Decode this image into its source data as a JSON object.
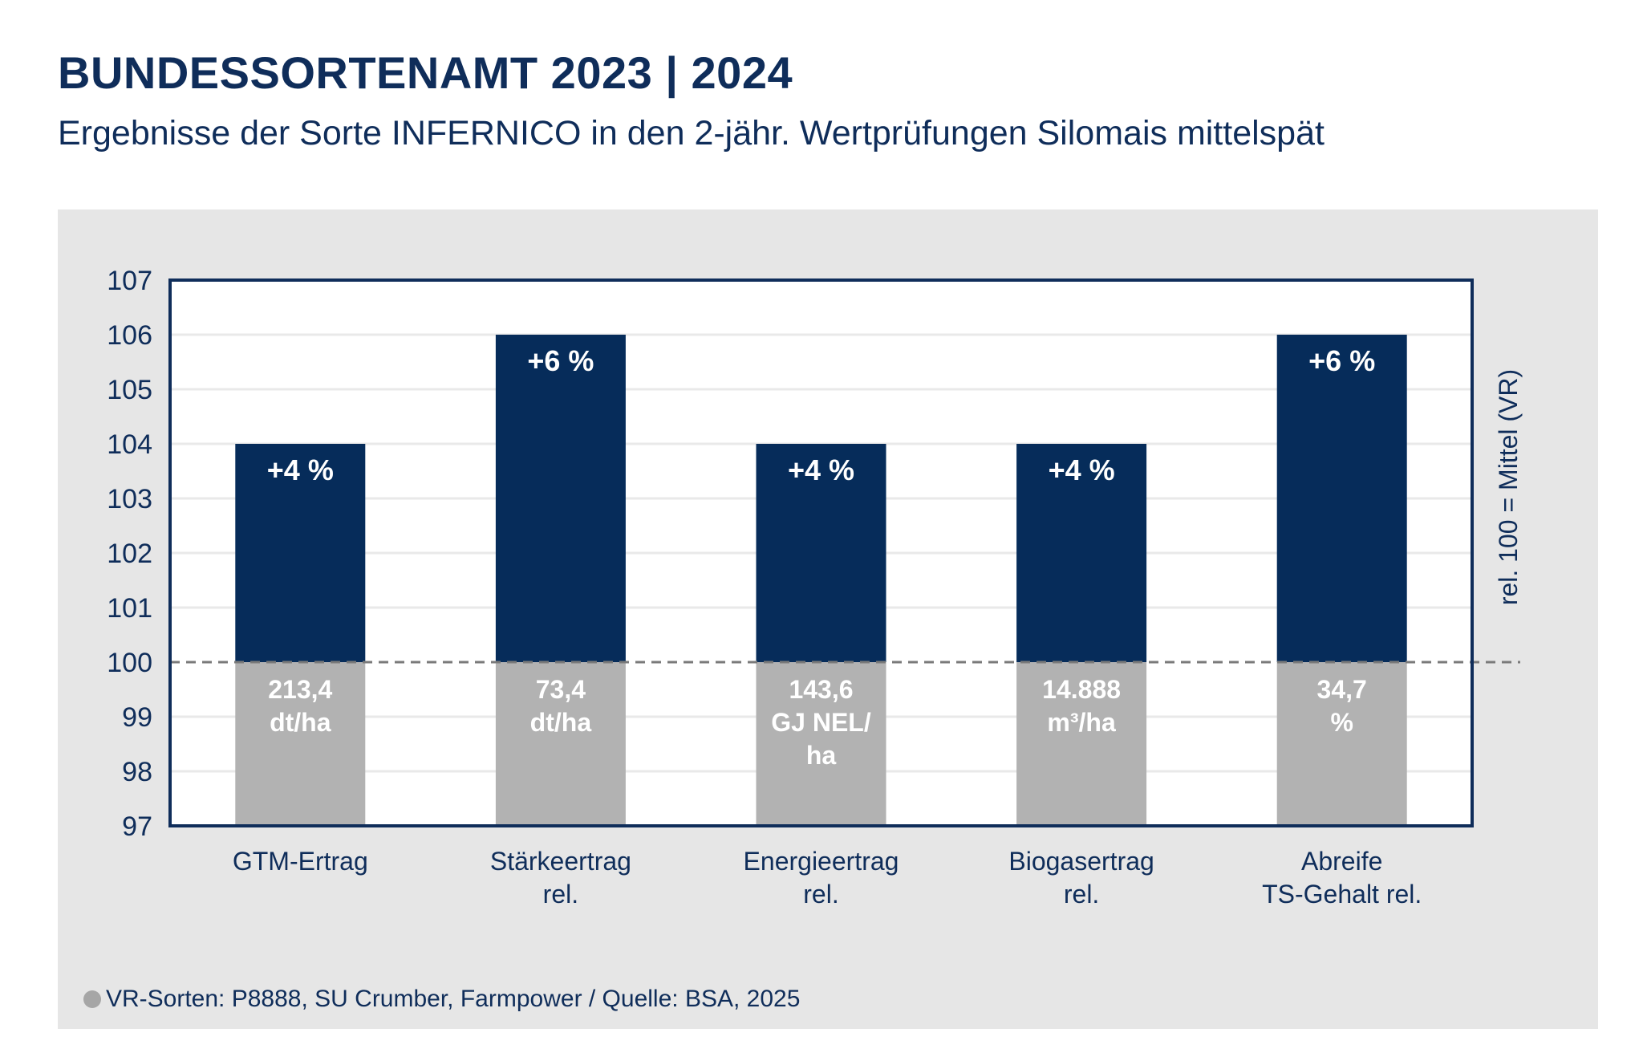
{
  "header": {
    "title": "BUNDESSORTENAMT 2023 | 2024",
    "subtitle": "Ergebnisse der Sorte INFERNICO in den 2-jähr. Wertprüfungen Silomais mittelspät"
  },
  "footnote": {
    "text": "VR-Sorten: P8888, SU Crumber, Farmpower / Quelle: BSA, 2025"
  },
  "colors": {
    "bar_above": "#062c5a",
    "bar_below": "#b2b2b2",
    "frame": "#0f2d5a",
    "text": "#0f2d5a",
    "reference_line": "#7a7a7a",
    "panel": "#e6e6e6"
  },
  "chart_data": {
    "type": "bar",
    "categories": [
      [
        "GTM-Ertrag"
      ],
      [
        "Stärkeertrag",
        "rel."
      ],
      [
        "Energieertrag",
        "rel."
      ],
      [
        "Biogasertrag",
        "rel."
      ],
      [
        "Abreife",
        "TS-Gehalt rel."
      ]
    ],
    "values": [
      104,
      106,
      104,
      104,
      106
    ],
    "baseline": 97,
    "reference_value": 100,
    "ylim": [
      97,
      107
    ],
    "yticks": [
      97,
      98,
      99,
      100,
      101,
      102,
      103,
      104,
      105,
      106,
      107
    ],
    "grid": true,
    "ylabel_right": "rel. 100 = Mittel (VR)",
    "percent_labels": [
      "+4 %",
      "+6 %",
      "+4 %",
      "+4 %",
      "+6 %"
    ],
    "absolute_labels": [
      [
        "213,4",
        "dt/ha"
      ],
      [
        "73,4",
        "dt/ha"
      ],
      [
        "143,6",
        "GJ NEL/",
        "ha"
      ],
      [
        "14.888",
        "m³/ha"
      ],
      [
        "34,7",
        "%"
      ]
    ]
  }
}
